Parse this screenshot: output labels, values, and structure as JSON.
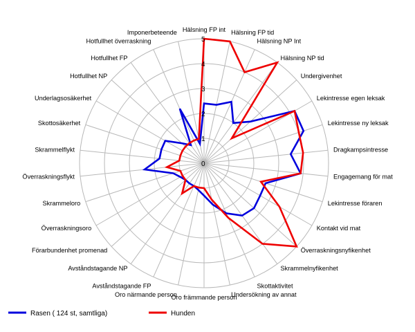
{
  "chart_data": {
    "type": "radar",
    "title": "",
    "rlim": [
      0,
      5
    ],
    "ring_ticks": [
      0,
      1,
      2,
      3,
      4,
      5
    ],
    "grid": true,
    "legend_position": "bottom-left",
    "categories": [
      "Hälsning FP int",
      "Hälsning FP tid",
      "Hälsning NP Int",
      "Hälsning NP tid",
      "Undergivenhet",
      "Lekintresse egen leksak",
      "Lekintresse ny leksak",
      "Dragkampsintresse",
      "Engagemang för mat",
      "Lekintresse föraren",
      "Kontakt vid mat",
      "Överraskningsnyfikenhet",
      "Skrammelnyfikenhet",
      "Skottaktivitet",
      "Undersökning av annat",
      "Oro främmande person",
      "Oro närmande person",
      "Avståndstagande FP",
      "Avståndstagande NP",
      "Förarbundenhet promenad",
      "Överraskningsoro",
      "Skrammeloro",
      "Överraskningsflykt",
      "Skrammelflykt",
      "Skottosäkerhet",
      "Underlagsosäkerhet",
      "Hotfullhet NP",
      "Hotfullhet FP",
      "Hotfullhet överraskning",
      "Imponerbeteende"
    ],
    "series": [
      {
        "name": "Rasen ( 124 st, samtliga)",
        "color": "#0000dd",
        "values": [
          2.4,
          2.4,
          2.7,
          2.0,
          2.5,
          4.2,
          4.2,
          3.5,
          3.9,
          2.6,
          2.6,
          2.7,
          2.6,
          2.2,
          1.7,
          1.3,
          1.1,
          1.0,
          1.0,
          1.0,
          1.1,
          1.3,
          2.4,
          1.8,
          1.8,
          1.8,
          1.2,
          0.9,
          2.4,
          0.8
        ]
      },
      {
        "name": "Hunden",
        "color": "#ee0000",
        "values": [
          5.0,
          5.0,
          4.0,
          5.0,
          1.5,
          4.2,
          4.0,
          4.0,
          3.9,
          2.4,
          3.5,
          5.0,
          4.0,
          2.4,
          1.5,
          1.0,
          1.0,
          1.0,
          1.5,
          1.0,
          1.0,
          1.0,
          1.5,
          1.0,
          1.0,
          1.0,
          1.0,
          1.0,
          1.0,
          1.0
        ]
      }
    ]
  }
}
